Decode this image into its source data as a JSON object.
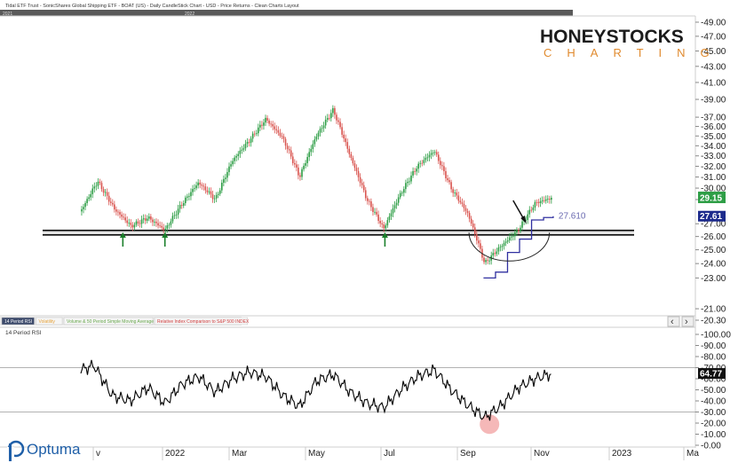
{
  "header": {
    "title": "Tidal ETF Trust - SonicShares Global Shipping ETF - BOAT (US) - Daily CandleStick Chart - USD - Price Returns - Clean Charts Layout",
    "tab1": "2021",
    "tab2": "2022"
  },
  "logo": {
    "line1": "HONEYSTOCKS",
    "line2": "CHARTING"
  },
  "brand": {
    "name": "Optuma"
  },
  "tabs": [
    {
      "label": "14 Period RSI",
      "color": "#ffffff"
    },
    {
      "label": "Volatility",
      "color": "#e6a23a"
    },
    {
      "label": "Volume & 50 Period Simple Moving Average",
      "color": "#6aa84f"
    },
    {
      "label": "Relative Index Comparison to S&P 500 INDEX",
      "color": "#d04040"
    }
  ],
  "rsi_title": "14 Period RSI",
  "scroll_left": "‹",
  "scroll_right": "›",
  "colors": {
    "up": "#2e9e46",
    "down": "#d9544f",
    "support": "#111111",
    "arrow_green": "#1a7f2a",
    "rel_line": "#3030a0",
    "rsi_line": "#000000",
    "rsi_circle": "#f2a6a6",
    "tag_price": "#2e9e46",
    "tag_rel": "#1c2a8c"
  },
  "chart_data": [
    {
      "type": "candlestick",
      "title": "Tidal ETF Trust - SonicShares Global Shipping ETF - BOAT (US) - Daily CandleStick Chart - USD - Price Returns - Clean Charts Layout",
      "x_ticks": [
        "v",
        "2022",
        "Mar",
        "May",
        "Jul",
        "Sep",
        "Nov",
        "2023",
        "Ma"
      ],
      "y_ticks": [
        "20.30",
        "21.00",
        "23.00",
        "24.00",
        "25.00",
        "26.00",
        "27.00",
        "29.00",
        "30.00",
        "31.00",
        "32.00",
        "33.00",
        "34.00",
        "35.00",
        "36.00",
        "37.00",
        "39.00",
        "41.00",
        "43.00",
        "45.00",
        "47.00",
        "49.00"
      ],
      "y_scale": "log",
      "ylim": [
        20.3,
        49.0
      ],
      "support_level": 26.3,
      "last_price": 29.15,
      "relative_value": 27.61,
      "relative_label": "27.610",
      "close_path": [
        {
          "x": "2021-10-25",
          "y": 28.0
        },
        {
          "x": "2021-11-08",
          "y": 30.6
        },
        {
          "x": "2021-11-22",
          "y": 28.2
        },
        {
          "x": "2021-12-06",
          "y": 26.8
        },
        {
          "x": "2021-12-20",
          "y": 27.5
        },
        {
          "x": "2022-01-03",
          "y": 26.5
        },
        {
          "x": "2022-01-17",
          "y": 28.6
        },
        {
          "x": "2022-01-31",
          "y": 30.5
        },
        {
          "x": "2022-02-14",
          "y": 29.0
        },
        {
          "x": "2022-02-28",
          "y": 32.5
        },
        {
          "x": "2022-03-14",
          "y": 34.5
        },
        {
          "x": "2022-03-28",
          "y": 36.8
        },
        {
          "x": "2022-04-11",
          "y": 34.8
        },
        {
          "x": "2022-04-25",
          "y": 31.0
        },
        {
          "x": "2022-05-09",
          "y": 35.0
        },
        {
          "x": "2022-05-23",
          "y": 37.8
        },
        {
          "x": "2022-06-06",
          "y": 33.0
        },
        {
          "x": "2022-06-20",
          "y": 29.0
        },
        {
          "x": "2022-07-04",
          "y": 26.6
        },
        {
          "x": "2022-07-18",
          "y": 29.5
        },
        {
          "x": "2022-08-01",
          "y": 32.0
        },
        {
          "x": "2022-08-15",
          "y": 33.5
        },
        {
          "x": "2022-08-29",
          "y": 30.0
        },
        {
          "x": "2022-09-12",
          "y": 27.8
        },
        {
          "x": "2022-09-26",
          "y": 24.0
        },
        {
          "x": "2022-10-10",
          "y": 25.3
        },
        {
          "x": "2022-10-24",
          "y": 26.5
        },
        {
          "x": "2022-11-07",
          "y": 28.7
        },
        {
          "x": "2022-11-21",
          "y": 29.15
        }
      ],
      "relative_path": [
        {
          "x": "2022-09-25",
          "y": 23.0
        },
        {
          "x": "2022-10-05",
          "y": 23.4
        },
        {
          "x": "2022-10-15",
          "y": 24.8
        },
        {
          "x": "2022-10-25",
          "y": 25.8
        },
        {
          "x": "2022-11-04",
          "y": 27.3
        },
        {
          "x": "2022-11-14",
          "y": 27.5
        },
        {
          "x": "2022-11-22",
          "y": 27.61
        }
      ],
      "annotations": {
        "support_arrows": [
          "2021-11-29",
          "2022-01-03",
          "2022-07-05"
        ],
        "breakout_arrow": "2022-10-30",
        "rounded_bottom_arc": [
          "2022-09-10",
          "2022-11-10"
        ]
      }
    },
    {
      "type": "line",
      "title": "14 Period RSI",
      "y_ticks": [
        "0.00",
        "10.00",
        "20.00",
        "30.00",
        "40.00",
        "50.00",
        "60.00",
        "70.00",
        "80.00",
        "90.00",
        "100.00"
      ],
      "ylim": [
        0,
        100
      ],
      "levels": [
        70,
        30
      ],
      "last_value": 64.77,
      "series": [
        {
          "values": [
            {
              "x": "2021-10-25",
              "y": 68
            },
            {
              "x": "2021-11-05",
              "y": 72
            },
            {
              "x": "2021-11-20",
              "y": 45
            },
            {
              "x": "2021-12-05",
              "y": 40
            },
            {
              "x": "2021-12-20",
              "y": 52
            },
            {
              "x": "2022-01-03",
              "y": 38
            },
            {
              "x": "2022-01-17",
              "y": 55
            },
            {
              "x": "2022-01-31",
              "y": 62
            },
            {
              "x": "2022-02-14",
              "y": 48
            },
            {
              "x": "2022-02-28",
              "y": 60
            },
            {
              "x": "2022-03-14",
              "y": 66
            },
            {
              "x": "2022-03-28",
              "y": 62
            },
            {
              "x": "2022-04-11",
              "y": 45
            },
            {
              "x": "2022-04-25",
              "y": 35
            },
            {
              "x": "2022-05-09",
              "y": 58
            },
            {
              "x": "2022-05-23",
              "y": 64
            },
            {
              "x": "2022-06-06",
              "y": 48
            },
            {
              "x": "2022-06-20",
              "y": 38
            },
            {
              "x": "2022-07-04",
              "y": 34
            },
            {
              "x": "2022-07-18",
              "y": 50
            },
            {
              "x": "2022-08-01",
              "y": 62
            },
            {
              "x": "2022-08-15",
              "y": 68
            },
            {
              "x": "2022-08-29",
              "y": 50
            },
            {
              "x": "2022-09-12",
              "y": 36
            },
            {
              "x": "2022-09-26",
              "y": 25
            },
            {
              "x": "2022-10-10",
              "y": 36
            },
            {
              "x": "2022-10-24",
              "y": 52
            },
            {
              "x": "2022-11-07",
              "y": 60
            },
            {
              "x": "2022-11-21",
              "y": 64.77
            }
          ]
        }
      ],
      "oversold_marker": "2022-09-30"
    }
  ]
}
